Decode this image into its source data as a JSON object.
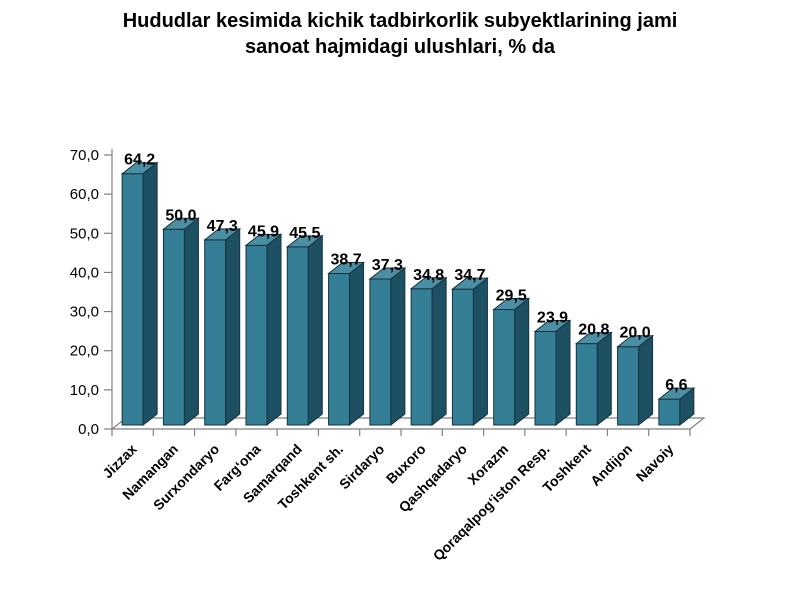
{
  "title": {
    "line1": "Hududlar kesimida kichik tadbirkorlik subyektlarining jami",
    "line2": "sanoat hajmidagi ulushlari, % da"
  },
  "chart_data": {
    "type": "bar",
    "title": "Hududlar kesimida kichik tadbirkorlik subyektlarining jami sanoat hajmidagi ulushlari, % da",
    "categories": [
      "Jizzax",
      "Namangan",
      "Surxondaryo",
      "Farg‘ona",
      "Samarqand",
      "Toshkent sh.",
      "Sirdaryo",
      "Buxoro",
      "Qashqadaryo",
      "Xorazm",
      "Qoraqalpog‘iston Resp.",
      "Toshkent",
      "Andijon",
      "Navoiy"
    ],
    "values": [
      64.2,
      50.0,
      47.3,
      45.9,
      45.5,
      38.7,
      37.3,
      34.8,
      34.7,
      29.5,
      23.9,
      20.8,
      20.0,
      6.6
    ],
    "value_labels": [
      "64,2",
      "50,0",
      "47,3",
      "45,9",
      "45,5",
      "38,7",
      "37,3",
      "34,8",
      "34,7",
      "29,5",
      "23,9",
      "20,8",
      "20,0",
      "6,6"
    ],
    "xlabel": "",
    "ylabel": "",
    "ylim": [
      0,
      70
    ],
    "ytick_step": 10,
    "ytick_labels": [
      "0,0",
      "10,0",
      "20,0",
      "30,0",
      "40,0",
      "50,0",
      "60,0",
      "70,0"
    ],
    "grid": false,
    "legend": "none",
    "effect": "3d",
    "colors": {
      "bar_front": "#347E96",
      "bar_side": "#1C5062",
      "bar_top": "#4A8FA3",
      "bar_outline": "#17333E",
      "axis_line": "#808080",
      "text": "#000000"
    }
  }
}
